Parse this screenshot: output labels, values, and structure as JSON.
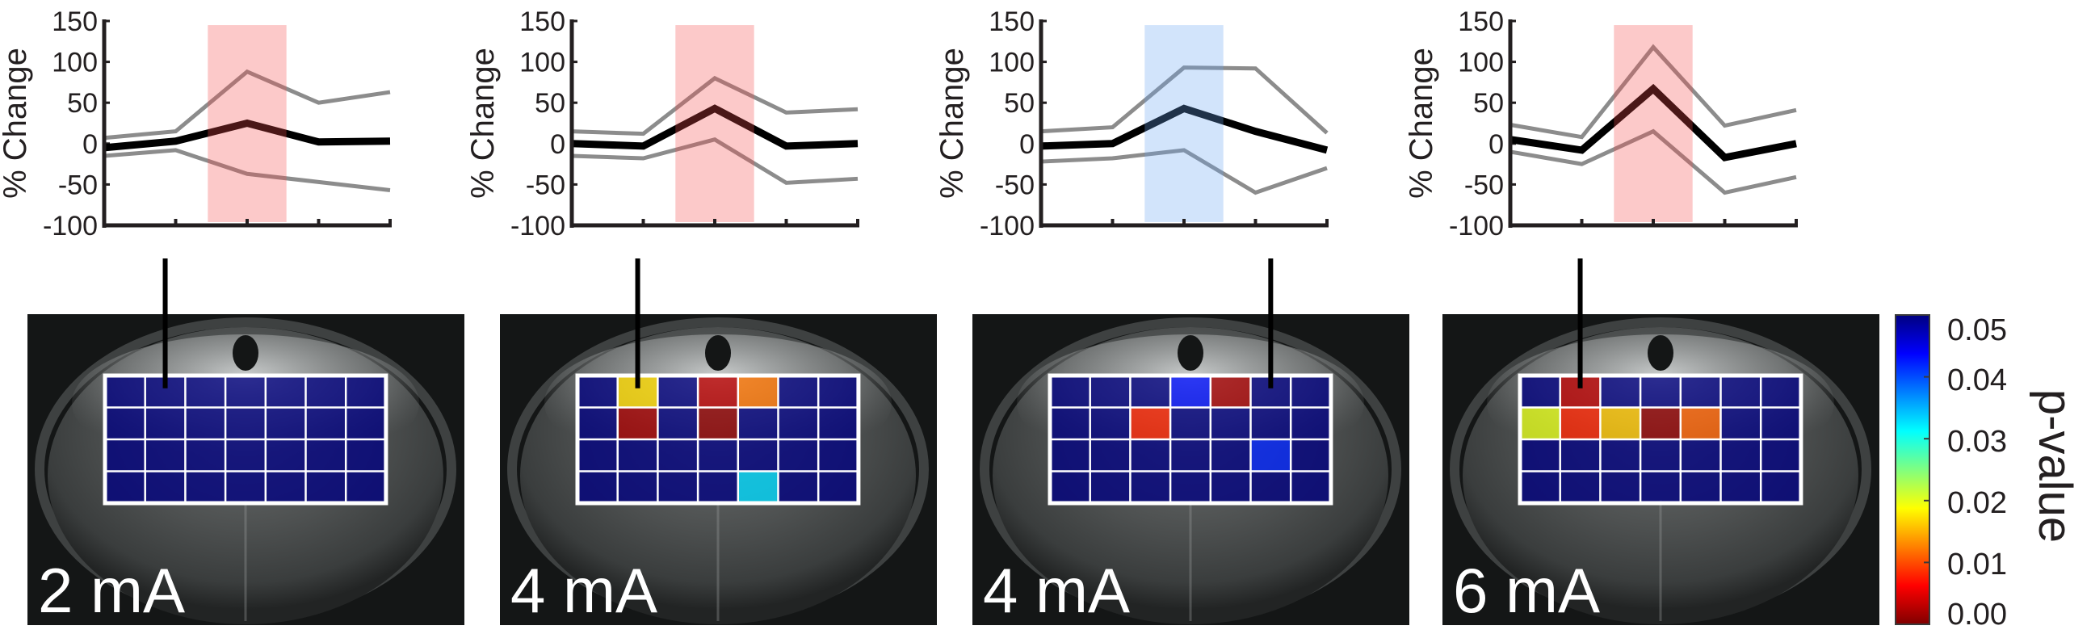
{
  "colorbar": {
    "label": "p-value",
    "range": [
      0,
      0.05
    ],
    "colormap": "jet (reversed: 0.00 dark red, 0.05 dark blue)",
    "ticks": [
      "0.05",
      "0.04",
      "0.03",
      "0.02",
      "0.01",
      "0.00"
    ]
  },
  "colors": {
    "mean_line": "#000000",
    "bound_lines": "#8c8c8c",
    "shade_positive": "#fcc9c9",
    "shade_negative": "#d2e4fb",
    "grid_lines": "#ffffff"
  },
  "chart_data": [
    {
      "type": "line",
      "ylabel": "% Change",
      "ylim": [
        -100,
        150
      ],
      "yticks": [
        "150",
        "100",
        "50",
        "0",
        "-50",
        "-100"
      ],
      "x": [
        1,
        2,
        3,
        4,
        5
      ],
      "shade": {
        "x": [
          2.45,
          3.55
        ],
        "color": "pink"
      },
      "series": [
        {
          "role": "mean",
          "values": [
            -5,
            3,
            25,
            2,
            3
          ]
        },
        {
          "role": "upper",
          "values": [
            7,
            15,
            88,
            50,
            63
          ]
        },
        {
          "role": "lower",
          "values": [
            -15,
            -8,
            -37,
            -47,
            -57
          ]
        }
      ],
      "heatmap": {
        "type": "heatmap",
        "label": "2 mA",
        "p": [
          [
            0.05,
            0.05,
            0.05,
            0.05,
            0.05,
            0.05,
            0.05
          ],
          [
            0.05,
            0.05,
            0.05,
            0.05,
            0.05,
            0.05,
            0.05
          ],
          [
            0.05,
            0.05,
            0.05,
            0.05,
            0.05,
            0.05,
            0.05
          ],
          [
            0.05,
            0.05,
            0.05,
            0.05,
            0.05,
            0.05,
            0.05
          ]
        ],
        "linked_cell": [
          0,
          1
        ]
      }
    },
    {
      "type": "line",
      "ylabel": "% Change",
      "ylim": [
        -100,
        150
      ],
      "yticks": [
        "150",
        "100",
        "50",
        "0",
        "-50",
        "-100"
      ],
      "x": [
        1,
        2,
        3,
        4,
        5
      ],
      "shade": {
        "x": [
          2.45,
          3.55
        ],
        "color": "pink"
      },
      "series": [
        {
          "role": "mean",
          "values": [
            0,
            -3,
            43,
            -3,
            0
          ]
        },
        {
          "role": "upper",
          "values": [
            15,
            12,
            80,
            38,
            42
          ]
        },
        {
          "role": "lower",
          "values": [
            -15,
            -18,
            5,
            -48,
            -43
          ]
        }
      ],
      "heatmap": {
        "type": "heatmap",
        "label": "4 mA",
        "p": [
          [
            0.05,
            0.017,
            0.05,
            0.003,
            0.012,
            0.05,
            0.05
          ],
          [
            0.05,
            0.002,
            0.05,
            0.001,
            0.05,
            0.05,
            0.05
          ],
          [
            0.05,
            0.05,
            0.05,
            0.05,
            0.05,
            0.05,
            0.05
          ],
          [
            0.05,
            0.05,
            0.05,
            0.05,
            0.033,
            0.05,
            0.05
          ]
        ],
        "linked_cell": [
          0,
          1
        ]
      }
    },
    {
      "type": "line",
      "ylabel": "% Change",
      "ylim": [
        -100,
        150
      ],
      "yticks": [
        "150",
        "100",
        "50",
        "0",
        "-50",
        "-100"
      ],
      "x": [
        1,
        2,
        3,
        4,
        5
      ],
      "shade": {
        "x": [
          2.45,
          3.55
        ],
        "color": "blue"
      },
      "series": [
        {
          "role": "mean",
          "values": [
            -3,
            0,
            43,
            15,
            -8
          ]
        },
        {
          "role": "upper",
          "values": [
            15,
            20,
            93,
            92,
            13
          ]
        },
        {
          "role": "lower",
          "values": [
            -22,
            -18,
            -8,
            -60,
            -30
          ]
        }
      ],
      "heatmap": {
        "type": "heatmap",
        "label": "4 mA",
        "p": [
          [
            0.05,
            0.05,
            0.05,
            0.043,
            0.002,
            0.05,
            0.05
          ],
          [
            0.05,
            0.05,
            0.008,
            0.05,
            0.05,
            0.05,
            0.05
          ],
          [
            0.05,
            0.05,
            0.05,
            0.05,
            0.05,
            0.042,
            0.05
          ],
          [
            0.05,
            0.05,
            0.05,
            0.05,
            0.05,
            0.05,
            0.05
          ]
        ],
        "linked_cell": [
          0,
          5
        ]
      }
    },
    {
      "type": "line",
      "ylabel": "% Change",
      "ylim": [
        -100,
        150
      ],
      "yticks": [
        "150",
        "100",
        "50",
        "0",
        "-50",
        "-100"
      ],
      "x": [
        1,
        2,
        3,
        4,
        5
      ],
      "shade": {
        "x": [
          2.45,
          3.55
        ],
        "color": "pink"
      },
      "series": [
        {
          "role": "mean",
          "values": [
            5,
            -8,
            67,
            -17,
            0
          ]
        },
        {
          "role": "upper",
          "values": [
            23,
            8,
            118,
            22,
            41
          ]
        },
        {
          "role": "lower",
          "values": [
            -10,
            -25,
            15,
            -60,
            -41
          ]
        }
      ],
      "heatmap": {
        "type": "heatmap",
        "label": "6 mA",
        "p": [
          [
            0.05,
            0.003,
            0.05,
            0.05,
            0.05,
            0.05,
            0.05
          ],
          [
            0.02,
            0.008,
            0.016,
            0.001,
            0.011,
            0.05,
            0.05
          ],
          [
            0.05,
            0.05,
            0.05,
            0.05,
            0.05,
            0.05,
            0.05
          ],
          [
            0.05,
            0.05,
            0.05,
            0.05,
            0.05,
            0.05,
            0.05
          ]
        ],
        "linked_cell": [
          0,
          1
        ]
      }
    }
  ]
}
